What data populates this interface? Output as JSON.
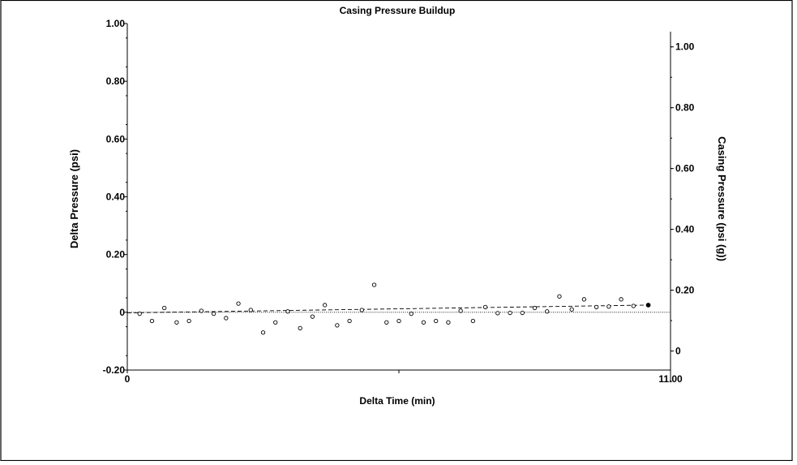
{
  "chart_data": {
    "type": "scatter",
    "title": "Casing Pressure Buildup",
    "xlabel": "Delta Time (min)",
    "ylabel": "Delta Pressure (psi)",
    "y2label": "Casing Pressure (psi (g))",
    "xlim": [
      0,
      11
    ],
    "ylim": [
      -0.2,
      1.0
    ],
    "y2lim": [
      -0.1,
      1.05
    ],
    "x_tick_labels": [
      {
        "v": 0,
        "t": "0"
      },
      {
        "v": 11,
        "t": "11.00"
      }
    ],
    "y_tick_labels": [
      {
        "v": 1.0,
        "t": "1.00"
      },
      {
        "v": 0.8,
        "t": "0.80"
      },
      {
        "v": 0.6,
        "t": "0.60"
      },
      {
        "v": 0.4,
        "t": "0.40"
      },
      {
        "v": 0.2,
        "t": "0.20"
      },
      {
        "v": 0,
        "t": "0"
      },
      {
        "v": -0.2,
        "t": "-0.20"
      }
    ],
    "y2_tick_labels": [
      {
        "v": 1.0,
        "t": "1.00"
      },
      {
        "v": 0.8,
        "t": "0.80"
      },
      {
        "v": 0.6,
        "t": "0.60"
      },
      {
        "v": 0.4,
        "t": "0.40"
      },
      {
        "v": 0.2,
        "t": "0.20"
      },
      {
        "v": 0,
        "t": "0"
      }
    ],
    "series": [
      {
        "marker": "open-circle",
        "points": [
          [
            0.25,
            -0.005
          ],
          [
            0.5,
            -0.03
          ],
          [
            0.75,
            0.015
          ],
          [
            1.0,
            -0.035
          ],
          [
            1.25,
            -0.03
          ],
          [
            1.5,
            0.005
          ],
          [
            1.75,
            -0.005
          ],
          [
            2.0,
            -0.02
          ],
          [
            2.25,
            0.03
          ],
          [
            2.5,
            0.008
          ],
          [
            2.75,
            -0.07
          ],
          [
            3.0,
            -0.035
          ],
          [
            3.25,
            0.003
          ],
          [
            3.5,
            -0.055
          ],
          [
            3.75,
            -0.015
          ],
          [
            4.0,
            0.025
          ],
          [
            4.25,
            -0.045
          ],
          [
            4.5,
            -0.03
          ],
          [
            4.75,
            0.008
          ],
          [
            5.0,
            0.095
          ],
          [
            5.25,
            -0.035
          ],
          [
            5.5,
            -0.03
          ],
          [
            5.75,
            -0.005
          ],
          [
            6.0,
            -0.035
          ],
          [
            6.25,
            -0.03
          ],
          [
            6.5,
            -0.035
          ],
          [
            6.75,
            0.005
          ],
          [
            7.0,
            -0.03
          ],
          [
            7.25,
            0.018
          ],
          [
            7.5,
            -0.003
          ],
          [
            7.75,
            -0.002
          ],
          [
            8.0,
            -0.002
          ],
          [
            8.25,
            0.015
          ],
          [
            8.5,
            0.003
          ],
          [
            8.75,
            0.055
          ],
          [
            9.0,
            0.01
          ],
          [
            9.25,
            0.045
          ],
          [
            9.5,
            0.018
          ],
          [
            9.75,
            0.02
          ],
          [
            10.0,
            0.045
          ],
          [
            10.25,
            0.022
          ]
        ],
        "last_point": [
          10.55,
          0.025
        ]
      }
    ],
    "trend_line": {
      "style": "dashed",
      "from": [
        0,
        -0.002
      ],
      "to": [
        10.55,
        0.025
      ]
    },
    "zero_line": {
      "style": "dotted",
      "y": 0
    },
    "grid": false,
    "legend": "none"
  }
}
